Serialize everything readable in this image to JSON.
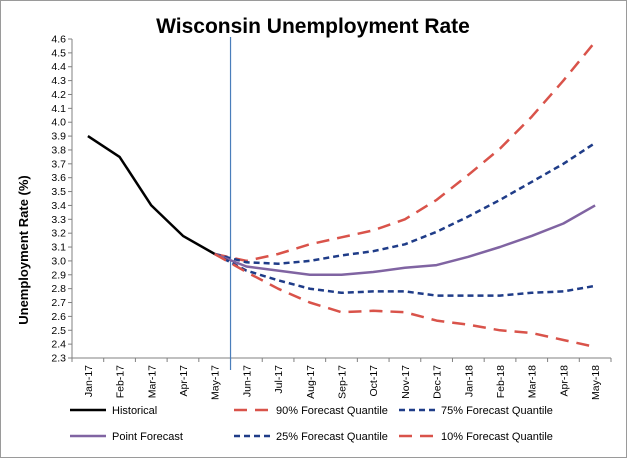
{
  "chart_data": {
    "type": "line",
    "title": "Wisconsin Unemployment Rate",
    "xlabel": "",
    "ylabel": "Unemployment Rate (%)",
    "ylim": [
      2.3,
      4.6
    ],
    "ytick_step": 0.1,
    "grid": false,
    "legend_position": "bottom",
    "x": [
      "Jan-17",
      "Feb-17",
      "Mar-17",
      "Apr-17",
      "May-17",
      "Jun-17",
      "Jul-17",
      "Aug-17",
      "Sep-17",
      "Oct-17",
      "Nov-17",
      "Dec-17",
      "Jan-18",
      "Feb-18",
      "Mar-18",
      "Apr-18",
      "May-18"
    ],
    "vertical_marker_after": "May-17",
    "series": [
      {
        "name": "Historical",
        "color": "#000000",
        "style": "solid",
        "width": 2.5,
        "values": [
          3.9,
          3.75,
          3.4,
          3.18,
          3.05,
          null,
          null,
          null,
          null,
          null,
          null,
          null,
          null,
          null,
          null,
          null,
          null
        ]
      },
      {
        "name": "90% Forecast Quantile",
        "color": "#d9534a",
        "style": "longdash",
        "width": 2.5,
        "values": [
          null,
          null,
          null,
          null,
          3.05,
          3.0,
          3.05,
          3.12,
          3.17,
          3.22,
          3.3,
          3.44,
          3.62,
          3.81,
          4.04,
          4.3,
          4.58
        ]
      },
      {
        "name": "75% Forecast Quantile",
        "color": "#1f3c88",
        "style": "dash",
        "width": 2.5,
        "values": [
          null,
          null,
          null,
          null,
          3.05,
          2.99,
          2.98,
          3.0,
          3.04,
          3.07,
          3.12,
          3.21,
          3.32,
          3.44,
          3.57,
          3.7,
          3.85
        ]
      },
      {
        "name": "Point Forecast",
        "color": "#8064a2",
        "style": "solid",
        "width": 2.5,
        "values": [
          null,
          null,
          null,
          null,
          3.05,
          2.96,
          2.93,
          2.9,
          2.9,
          2.92,
          2.95,
          2.97,
          3.03,
          3.1,
          3.18,
          3.27,
          3.4
        ]
      },
      {
        "name": "25% Forecast Quantile",
        "color": "#1f3c88",
        "style": "dash",
        "width": 2.5,
        "values": [
          null,
          null,
          null,
          null,
          3.05,
          2.93,
          2.86,
          2.8,
          2.77,
          2.78,
          2.78,
          2.75,
          2.75,
          2.75,
          2.77,
          2.78,
          2.82
        ]
      },
      {
        "name": "10% Forecast Quantile",
        "color": "#d9534a",
        "style": "longdash",
        "width": 2.5,
        "values": [
          null,
          null,
          null,
          null,
          3.05,
          2.92,
          2.8,
          2.7,
          2.63,
          2.64,
          2.63,
          2.57,
          2.54,
          2.5,
          2.48,
          2.43,
          2.38
        ]
      }
    ]
  }
}
